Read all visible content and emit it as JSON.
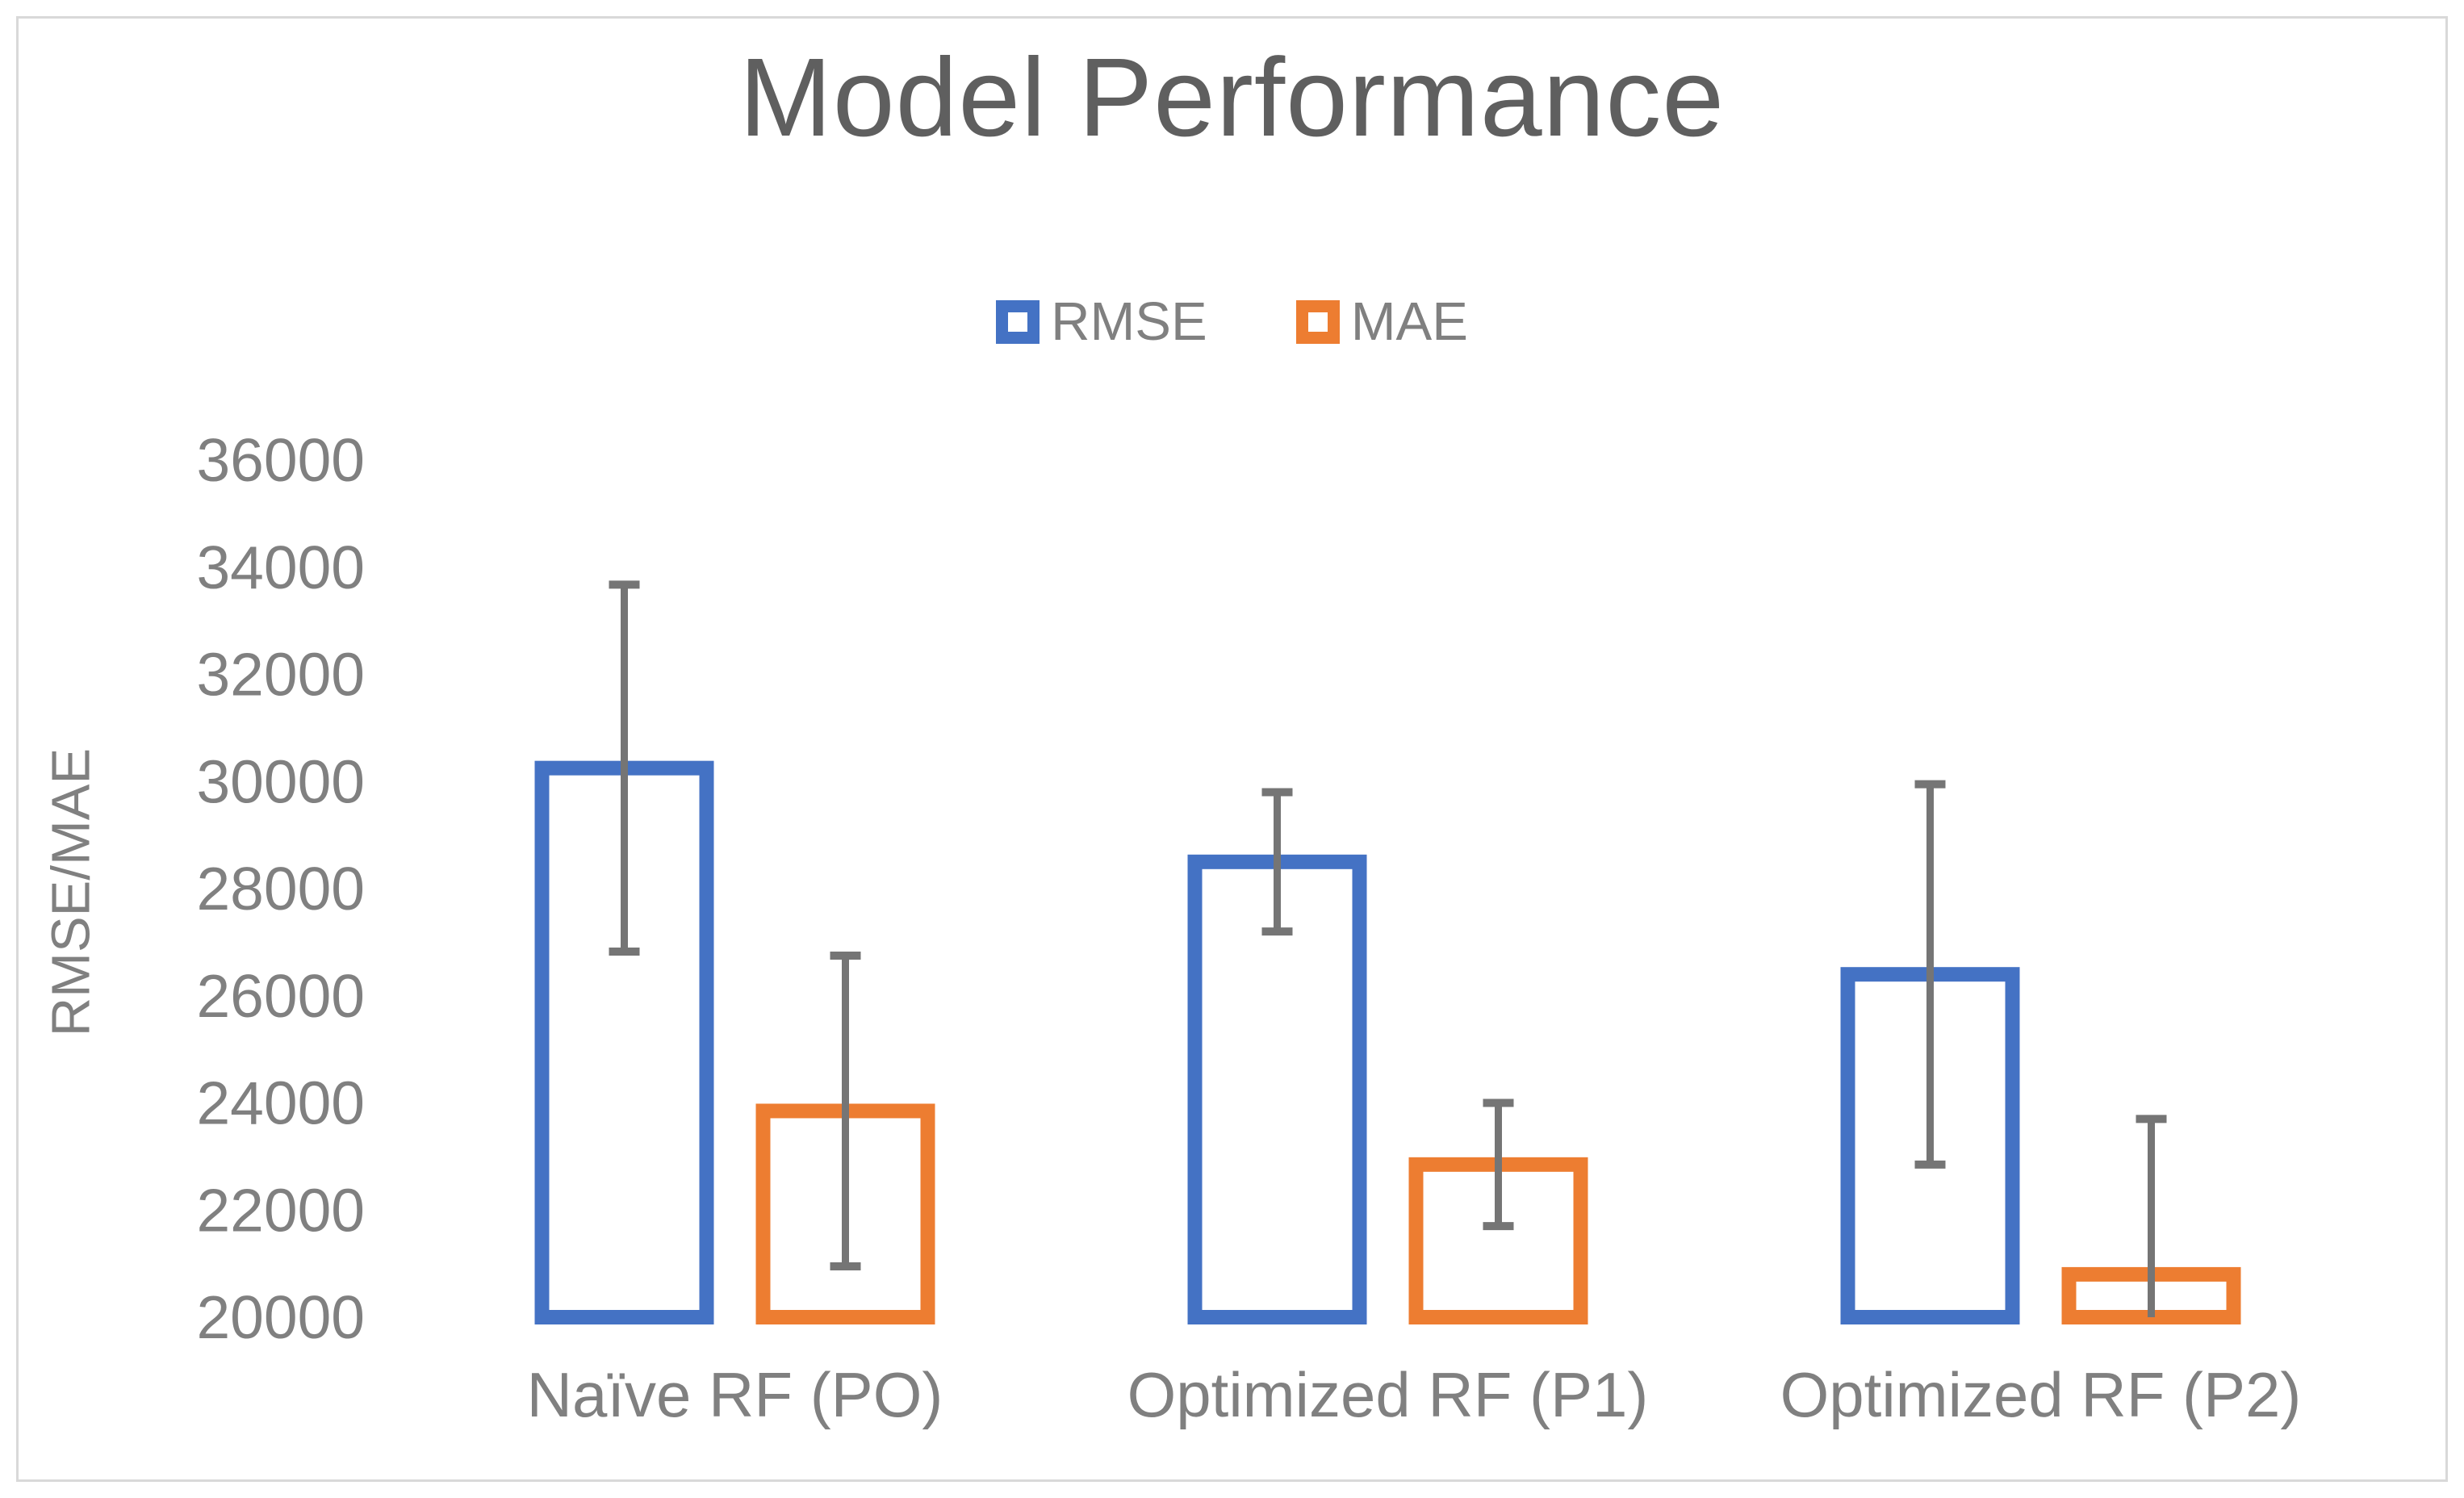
{
  "chart": {
    "title": "Model Performance",
    "y_axis_title": "RMSE/MAE"
  },
  "chart_data": {
    "type": "bar",
    "title": "Model Performance",
    "xlabel": "",
    "ylabel": "RMSE/MAE",
    "categories": [
      "Naïve RF (PO)",
      "Optimized RF (P1)",
      "Optimized RF (P2)"
    ],
    "series": [
      {
        "name": "RMSE",
        "color": "#4472C4",
        "values": [
          30250,
          28500,
          26400
        ],
        "errors": [
          3425,
          1300,
          3550
        ]
      },
      {
        "name": "MAE",
        "color": "#ED7D31",
        "values": [
          23850,
          22850,
          20800
        ],
        "errors": [
          2900,
          1150,
          2900
        ]
      }
    ],
    "ylim": [
      20000,
      36000
    ],
    "yticks": [
      20000,
      22000,
      24000,
      26000,
      28000,
      30000,
      32000,
      34000,
      36000
    ],
    "grid": false,
    "legend_position": "top-center",
    "bar_style": "white fill with thick colored outline",
    "error_bars": "symmetric, gray, cap ends, clipped at axis minimum",
    "error_bar_color": "#757575"
  }
}
